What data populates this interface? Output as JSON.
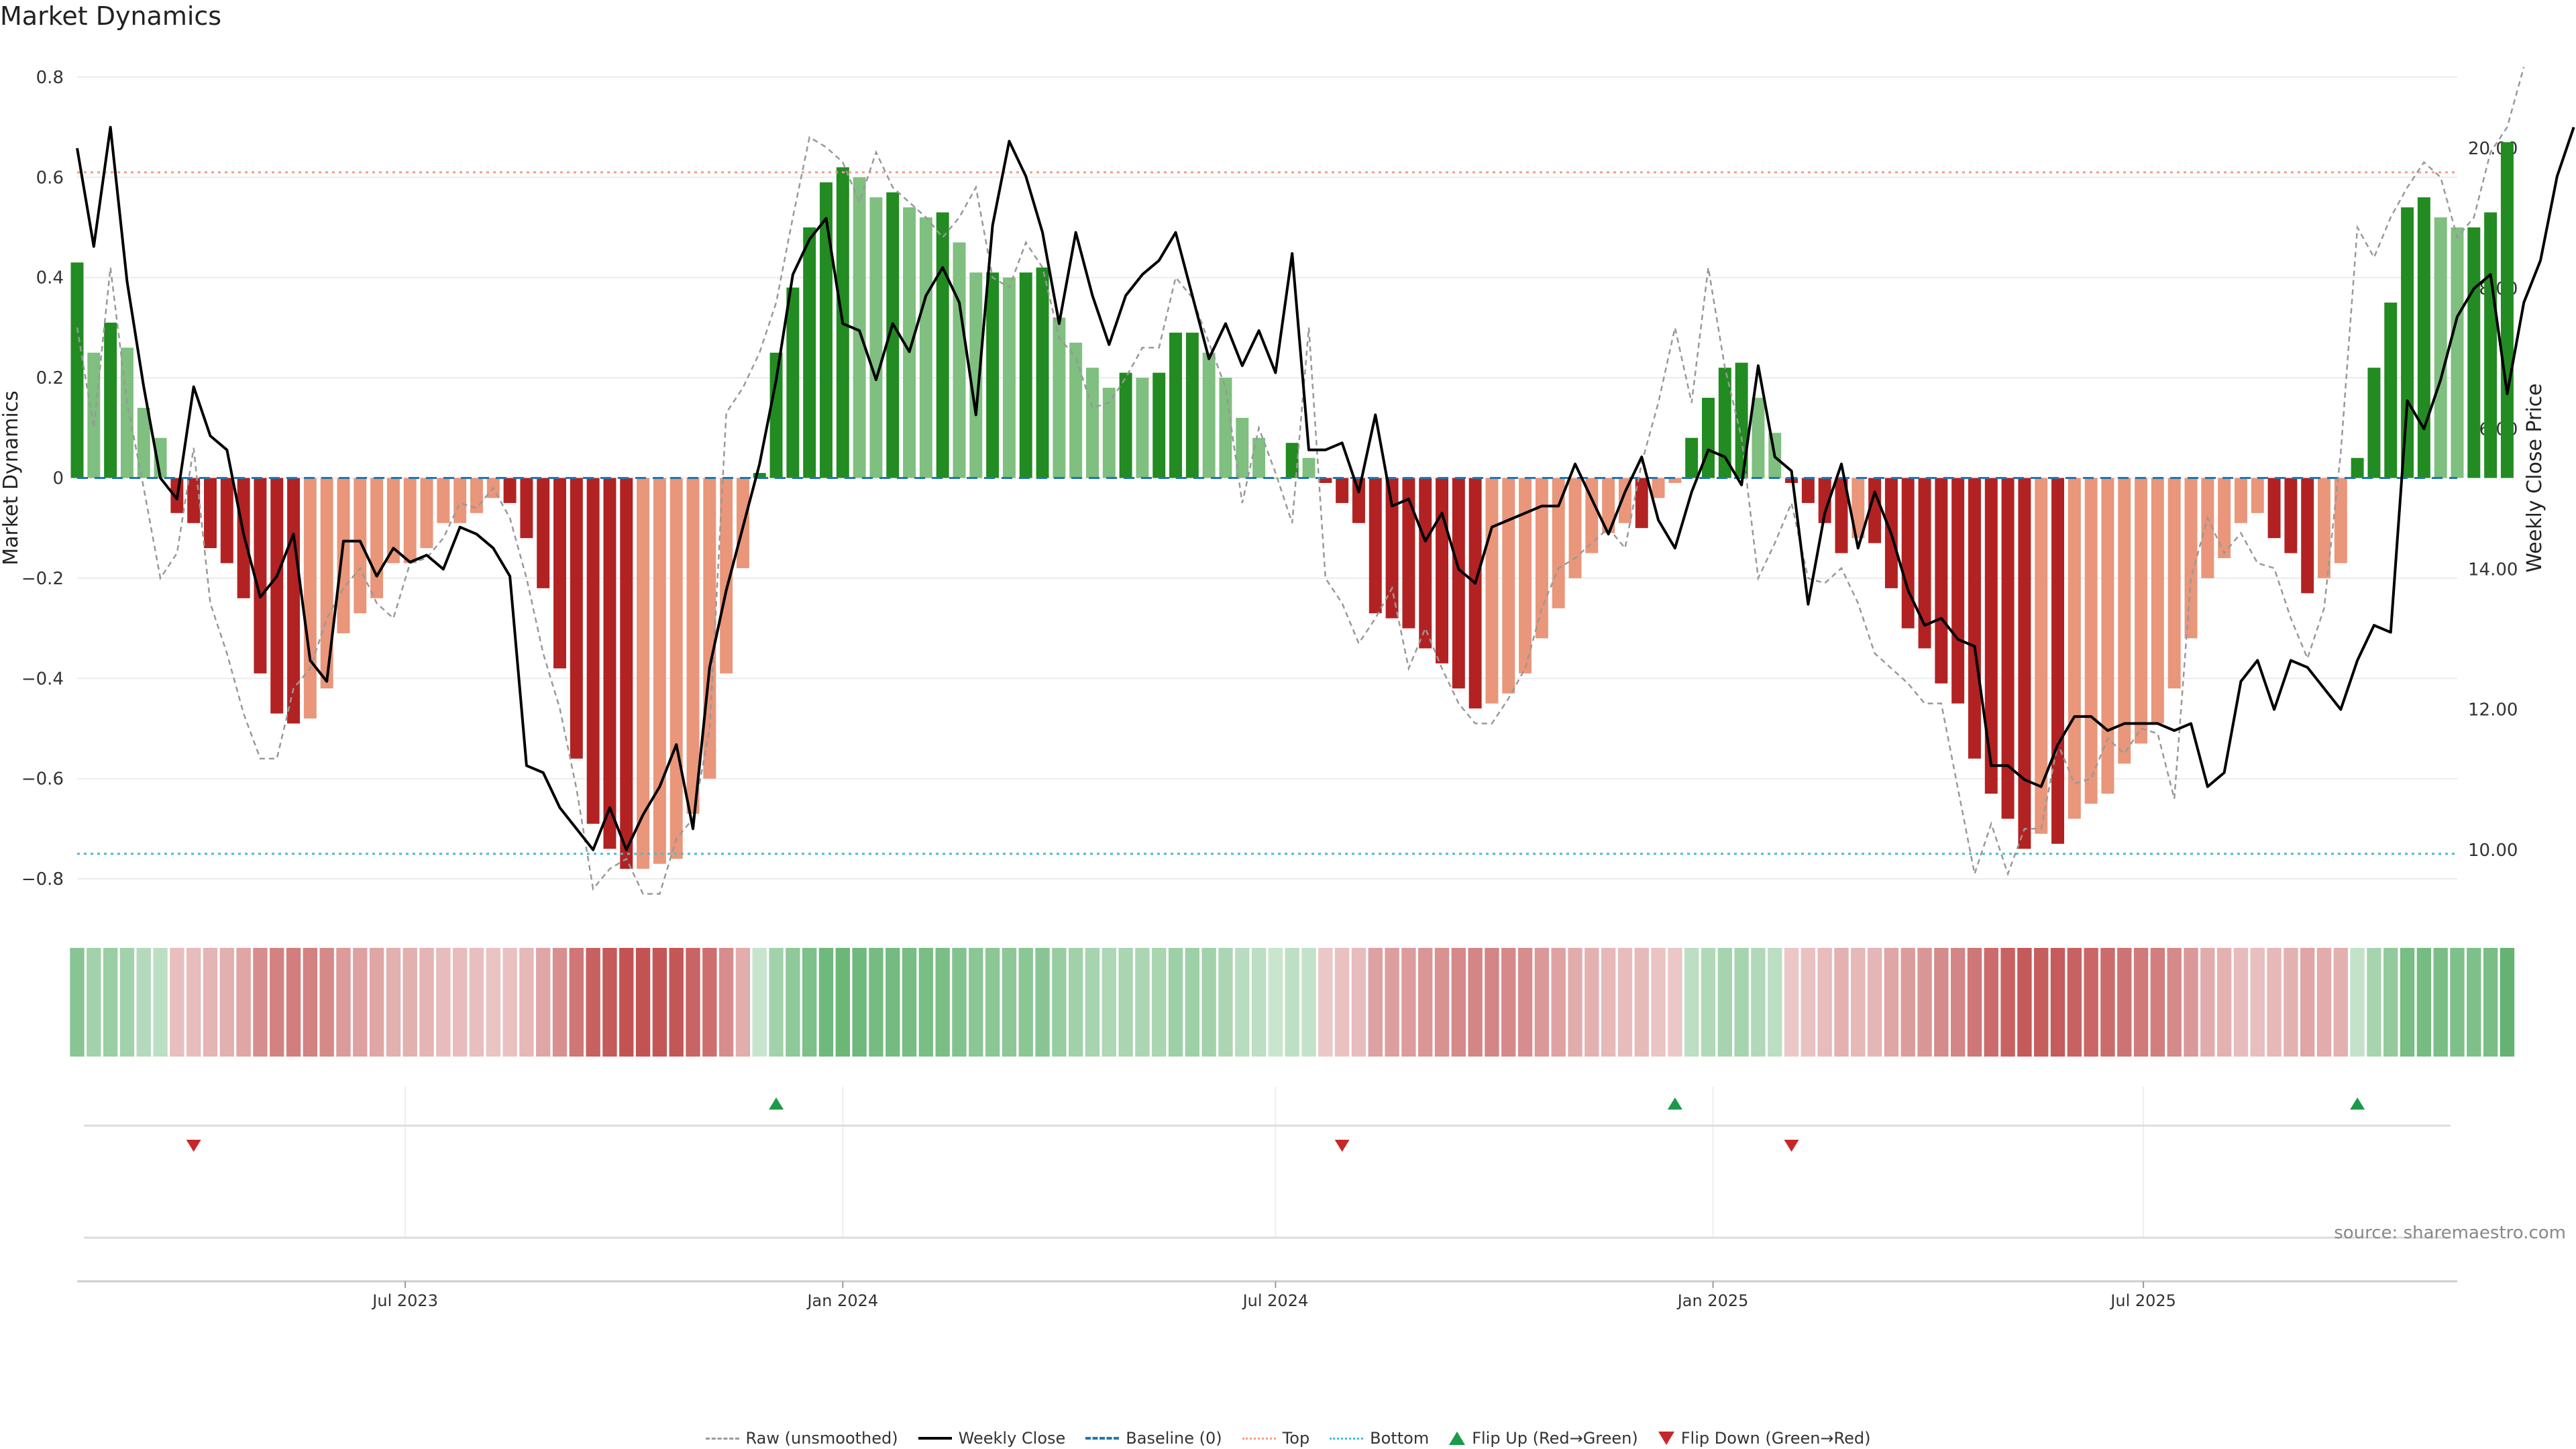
{
  "title": "Market Dynamics",
  "source": "source: sharemaestro.com",
  "colors": {
    "green_strong": "#228b22",
    "green_weak": "#7fbf7f",
    "red_strong": "#b22222",
    "red_weak": "#e9967a",
    "close": "#000000",
    "raw": "#999999",
    "baseline": "#1f77b4",
    "top": "#f0a080",
    "bottom": "#40c0d0",
    "flip_up": "#1a9a4a",
    "flip_down": "#c62828"
  },
  "legend": {
    "raw": "Raw (unsmoothed)",
    "close": "Weekly Close",
    "baseline": "Baseline (0)",
    "top": "Top",
    "bottom": "Bottom",
    "flip_up": "Flip Up (Red→Green)",
    "flip_down": "Flip Down (Green→Red)"
  },
  "chart_data": {
    "type": "bar",
    "title": "Market Dynamics",
    "ylabel": "Market Dynamics",
    "y2label": "Weekly Close Price",
    "ylim": [
      -0.84,
      0.84
    ],
    "y2lim": [
      9.3,
      21.3
    ],
    "yticks": [
      "0.8",
      "0.6",
      "0.4",
      "0.2",
      "0",
      "−0.2",
      "−0.4",
      "−0.6",
      "−0.8"
    ],
    "y2ticks": [
      "20.00",
      "18.00",
      "16.00",
      "14.00",
      "12.00",
      "10.00"
    ],
    "x_start": "2023-02-13",
    "x_step_days": 7,
    "x_end": "2025-11-10",
    "xticks": [
      {
        "label": "Jul 2023",
        "date": "2023-07-01"
      },
      {
        "label": "Jan 2024",
        "date": "2024-01-01"
      },
      {
        "label": "Jul 2024",
        "date": "2024-07-01"
      },
      {
        "label": "Jan 2025",
        "date": "2025-01-01"
      },
      {
        "label": "Jul 2025",
        "date": "2025-07-01"
      }
    ],
    "top_level": 0.61,
    "bottom_level": -0.75,
    "grid": true,
    "legend_position": "bottom-center",
    "series": [
      {
        "name": "Market Dynamics",
        "values": [
          0.43,
          0.25,
          0.31,
          0.26,
          0.14,
          0.08,
          -0.07,
          -0.09,
          -0.14,
          -0.17,
          -0.24,
          -0.39,
          -0.47,
          -0.49,
          -0.48,
          -0.42,
          -0.31,
          -0.27,
          -0.24,
          -0.17,
          -0.17,
          -0.14,
          -0.09,
          -0.09,
          -0.07,
          -0.04,
          -0.05,
          -0.12,
          -0.22,
          -0.38,
          -0.56,
          -0.69,
          -0.74,
          -0.78,
          -0.78,
          -0.77,
          -0.76,
          -0.67,
          -0.6,
          -0.39,
          -0.18,
          0.01,
          0.25,
          0.38,
          0.5,
          0.59,
          0.62,
          0.6,
          0.56,
          0.57,
          0.54,
          0.52,
          0.53,
          0.47,
          0.41,
          0.41,
          0.4,
          0.41,
          0.42,
          0.32,
          0.27,
          0.22,
          0.18,
          0.21,
          0.2,
          0.21,
          0.29,
          0.29,
          0.25,
          0.2,
          0.12,
          0.08,
          0.0,
          0.07,
          0.04,
          -0.01,
          -0.05,
          -0.09,
          -0.27,
          -0.28,
          -0.3,
          -0.34,
          -0.37,
          -0.42,
          -0.46,
          -0.45,
          -0.43,
          -0.39,
          -0.32,
          -0.26,
          -0.2,
          -0.15,
          -0.11,
          -0.09,
          -0.1,
          -0.04,
          -0.01,
          0.08,
          0.16,
          0.22,
          0.23,
          0.16,
          0.09,
          -0.01,
          -0.05,
          -0.09,
          -0.15,
          -0.12,
          -0.13,
          -0.22,
          -0.3,
          -0.34,
          -0.41,
          -0.45,
          -0.56,
          -0.63,
          -0.68,
          -0.74,
          -0.71,
          -0.73,
          -0.68,
          -0.65,
          -0.63,
          -0.57,
          -0.53,
          -0.49,
          -0.42,
          -0.32,
          -0.2,
          -0.16,
          -0.09,
          -0.07,
          -0.12,
          -0.15,
          -0.23,
          -0.2,
          -0.17,
          0.04,
          0.22,
          0.35,
          0.54,
          0.56,
          0.52,
          0.5,
          0.5,
          0.53,
          0.67
        ]
      },
      {
        "name": "Raw (unsmoothed)",
        "values": [
          0.3,
          0.1,
          0.42,
          0.15,
          -0.02,
          -0.2,
          -0.15,
          0.06,
          -0.25,
          -0.35,
          -0.47,
          -0.56,
          -0.56,
          -0.42,
          -0.38,
          -0.28,
          -0.22,
          -0.18,
          -0.25,
          -0.28,
          -0.17,
          -0.16,
          -0.12,
          -0.05,
          -0.06,
          -0.02,
          -0.08,
          -0.2,
          -0.35,
          -0.46,
          -0.62,
          -0.82,
          -0.78,
          -0.76,
          -0.83,
          -0.83,
          -0.72,
          -0.68,
          -0.5,
          0.13,
          0.18,
          0.25,
          0.35,
          0.52,
          0.68,
          0.66,
          0.63,
          0.55,
          0.65,
          0.58,
          0.55,
          0.52,
          0.48,
          0.52,
          0.58,
          0.4,
          0.38,
          0.47,
          0.42,
          0.28,
          0.24,
          0.14,
          0.15,
          0.2,
          0.26,
          0.26,
          0.4,
          0.36,
          0.27,
          0.18,
          -0.05,
          0.1,
          0.01,
          -0.09,
          0.3,
          -0.2,
          -0.25,
          -0.33,
          -0.28,
          -0.22,
          -0.38,
          -0.3,
          -0.38,
          -0.45,
          -0.49,
          -0.49,
          -0.44,
          -0.38,
          -0.26,
          -0.18,
          -0.16,
          -0.13,
          -0.1,
          -0.14,
          0.03,
          0.15,
          0.3,
          0.15,
          0.42,
          0.22,
          0.08,
          -0.2,
          -0.13,
          -0.05,
          -0.2,
          -0.21,
          -0.18,
          -0.25,
          -0.35,
          -0.38,
          -0.41,
          -0.45,
          -0.45,
          -0.62,
          -0.79,
          -0.69,
          -0.79,
          -0.7,
          -0.7,
          -0.53,
          -0.61,
          -0.6,
          -0.52,
          -0.55,
          -0.5,
          -0.51,
          -0.64,
          -0.2,
          -0.08,
          -0.15,
          -0.11,
          -0.17,
          -0.18,
          -0.28,
          -0.36,
          -0.26,
          0.05,
          0.5,
          0.44,
          0.52,
          0.58,
          0.63,
          0.6,
          0.48,
          0.52,
          0.65,
          0.7,
          0.82
        ]
      },
      {
        "name": "Weekly Close",
        "values": [
          20.0,
          18.6,
          20.3,
          18.1,
          16.6,
          15.3,
          15.0,
          16.6,
          15.9,
          15.7,
          14.5,
          13.6,
          13.9,
          14.5,
          12.7,
          12.4,
          14.4,
          14.4,
          13.9,
          14.3,
          14.1,
          14.2,
          14.0,
          14.6,
          14.5,
          14.3,
          13.9,
          11.2,
          11.1,
          10.6,
          10.3,
          10.0,
          10.6,
          10.0,
          10.5,
          10.9,
          11.5,
          10.3,
          12.6,
          13.7,
          14.6,
          15.5,
          16.7,
          18.2,
          18.7,
          19.0,
          17.5,
          17.4,
          16.7,
          17.5,
          17.1,
          17.9,
          18.3,
          17.8,
          16.2,
          18.9,
          20.1,
          19.6,
          18.8,
          17.5,
          18.8,
          17.9,
          17.2,
          17.9,
          18.2,
          18.4,
          18.8,
          17.9,
          17.0,
          17.5,
          16.9,
          17.4,
          16.8,
          18.5,
          15.7,
          15.7,
          15.8,
          15.1,
          16.2,
          14.9,
          15.0,
          14.4,
          14.8,
          14.0,
          13.8,
          14.6,
          14.7,
          14.8,
          14.9,
          14.9,
          15.5,
          15.0,
          14.5,
          15.1,
          15.6,
          14.7,
          14.3,
          15.1,
          15.7,
          15.6,
          15.2,
          16.9,
          15.6,
          15.4,
          13.5,
          14.8,
          15.5,
          14.3,
          15.1,
          14.5,
          13.7,
          13.2,
          13.3,
          13.0,
          12.9,
          11.2,
          11.2,
          11.0,
          10.9,
          11.5,
          11.9,
          11.9,
          11.7,
          11.8,
          11.8,
          11.8,
          11.7,
          11.8,
          10.9,
          11.1,
          12.4,
          12.7,
          12.0,
          12.7,
          12.6,
          12.3,
          12.0,
          12.7,
          13.2,
          13.1,
          16.4,
          16.0,
          16.7,
          17.6,
          18.0,
          18.2,
          16.5,
          17.8,
          18.4,
          19.6,
          20.3
        ]
      }
    ],
    "flips": [
      {
        "type": "up",
        "date": "2023-12-04"
      },
      {
        "type": "up",
        "date": "2024-12-16"
      },
      {
        "type": "up",
        "date": "2025-09-29"
      },
      {
        "type": "down",
        "date": "2023-04-03"
      },
      {
        "type": "down",
        "date": "2024-07-29"
      },
      {
        "type": "down",
        "date": "2025-02-03"
      }
    ]
  }
}
